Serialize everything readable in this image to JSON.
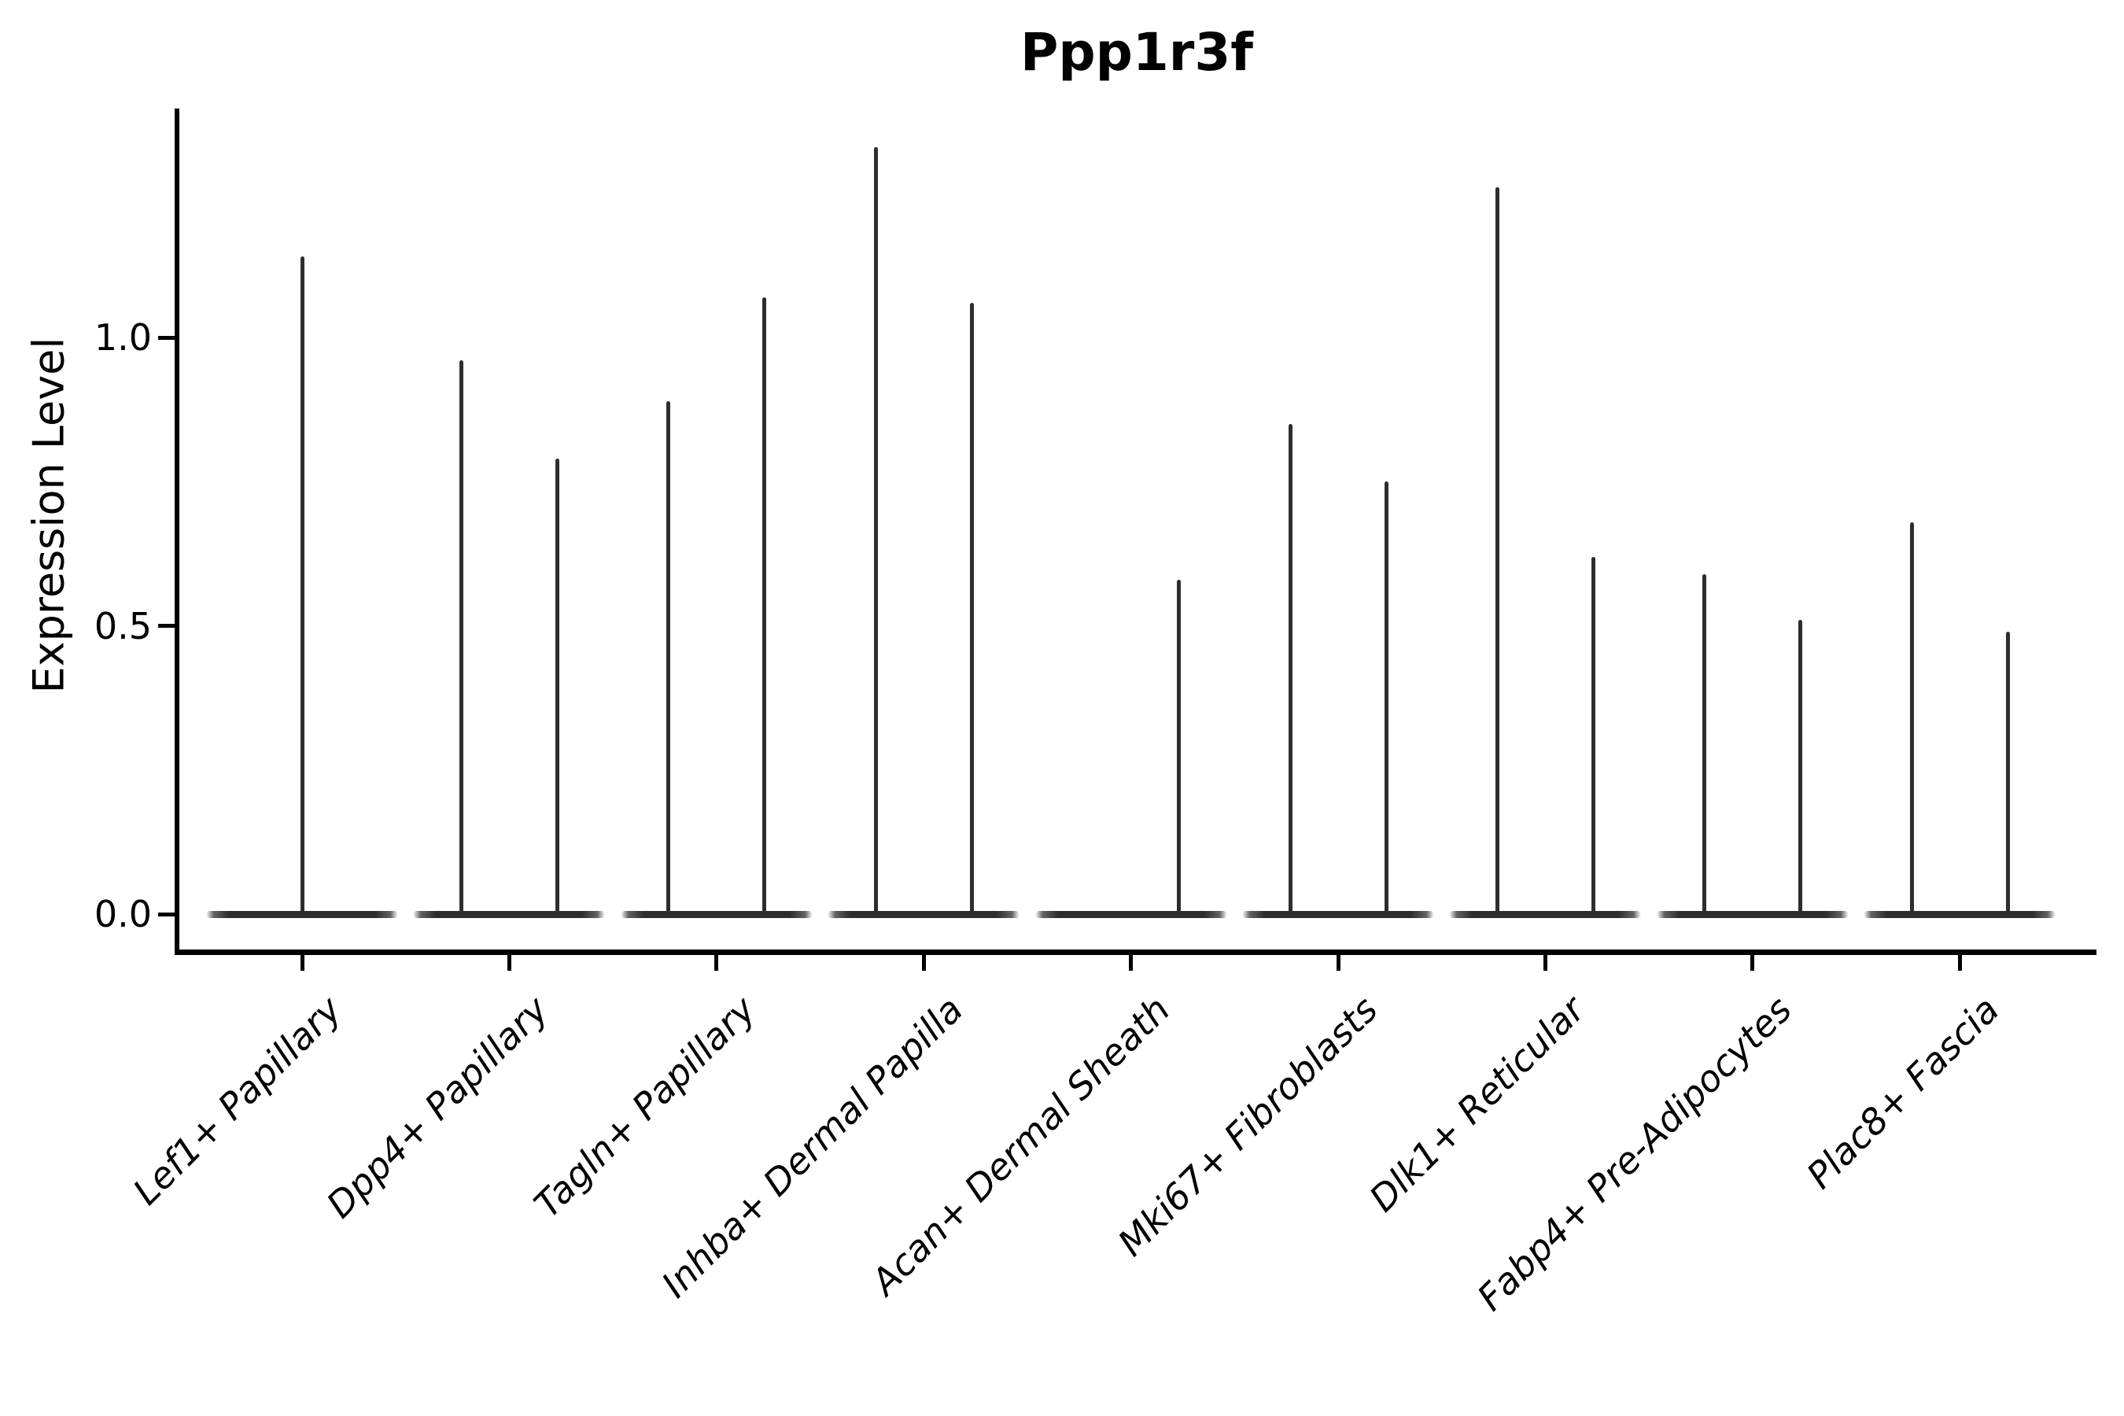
{
  "title": "Ppp1r3f",
  "chart_data": {
    "type": "violin",
    "title": "Ppp1r3f",
    "ylabel": "Expression Level",
    "xlabel": "",
    "ytick_labels": [
      "0.0",
      "0.5",
      "1.0"
    ],
    "ytick_values": [
      0.0,
      0.5,
      1.0
    ],
    "ylim": [
      0.0,
      1.39
    ],
    "grid": false,
    "legend": "none",
    "style": "single-cell expression violin plot; each cluster shows dodged violins collapsed to a flat base at 0 with a thin spike up to the maximum expression value",
    "categories": [
      {
        "label": "Lef1+ Papillary",
        "violins": [
          {
            "position": "center",
            "max": 1.14
          }
        ]
      },
      {
        "label": "Dpp4+ Papillary",
        "violins": [
          {
            "position": "left",
            "max": 0.96
          },
          {
            "position": "right",
            "max": 0.79
          }
        ]
      },
      {
        "label": "Tagln+ Papillary",
        "violins": [
          {
            "position": "left",
            "max": 0.89
          },
          {
            "position": "right",
            "max": 1.07
          }
        ]
      },
      {
        "label": "Inhba+ Dermal Papilla",
        "violins": [
          {
            "position": "left",
            "max": 1.33
          },
          {
            "position": "right",
            "max": 1.06
          }
        ]
      },
      {
        "label": "Acan+ Dermal Sheath",
        "violins": [
          {
            "position": "left",
            "max": 0.0
          },
          {
            "position": "right",
            "max": 0.58
          }
        ]
      },
      {
        "label": "Mki67+ Fibroblasts",
        "violins": [
          {
            "position": "left",
            "max": 0.85
          },
          {
            "position": "right",
            "max": 0.75
          }
        ]
      },
      {
        "label": "Dlk1+ Reticular",
        "violins": [
          {
            "position": "left",
            "max": 1.26
          },
          {
            "position": "right",
            "max": 0.62
          }
        ]
      },
      {
        "label": "Fabp4+ Pre-Adipocytes",
        "violins": [
          {
            "position": "left",
            "max": 0.59
          },
          {
            "position": "right",
            "max": 0.51
          }
        ]
      },
      {
        "label": "Plac8+ Fascia",
        "violins": [
          {
            "position": "left",
            "max": 0.68
          },
          {
            "position": "right",
            "max": 0.49
          }
        ]
      }
    ],
    "colors": {
      "violin": "#2d2d2d",
      "axis": "#000000",
      "text": "#000000",
      "background": "#ffffff"
    }
  }
}
